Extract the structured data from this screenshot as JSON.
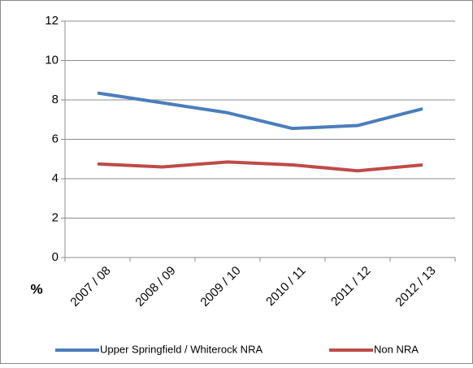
{
  "chart_data": {
    "type": "line",
    "y_label": "%",
    "categories": [
      "2007 / 08",
      "2008 / 09",
      "2009 / 10",
      "2010 / 11",
      "2011 / 12",
      "2012 / 13"
    ],
    "series": [
      {
        "name": "Upper Springfield / Whiterock NRA",
        "color": "#4a7ebb",
        "values": [
          8.35,
          7.85,
          7.35,
          6.55,
          6.7,
          7.55
        ]
      },
      {
        "name": "Non NRA",
        "color": "#be4b48",
        "values": [
          4.75,
          4.6,
          4.85,
          4.7,
          4.4,
          4.7
        ]
      }
    ],
    "ylim": [
      0,
      12
    ],
    "yticks": [
      0,
      2,
      4,
      6,
      8,
      10,
      12
    ],
    "grid": true
  }
}
